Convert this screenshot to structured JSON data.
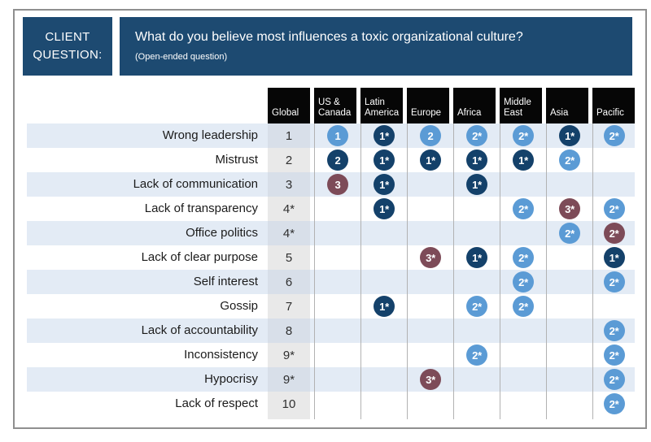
{
  "header": {
    "label_line1": "CLIENT",
    "label_line2": "QUESTION:",
    "question": "What do you believe most influences a toxic organizational culture?",
    "subtext": "(Open-ended question)"
  },
  "colors": {
    "band_navy": "#1d4a71",
    "column_header_black": "#060606",
    "row_stripe_blue": "#e3ebf5",
    "global_column_gray": "#e9e9e9",
    "circle_blue": "#5b9bd5",
    "circle_navy": "#14416a",
    "circle_maroon": "#7d4b58"
  },
  "chart_data": {
    "type": "table",
    "title": "What do you believe most influences a toxic organizational culture?",
    "subtitle": "(Open-ended question)",
    "columns": [
      "Global",
      "US & Canada",
      "Latin America",
      "Europe",
      "Africa",
      "Middle East",
      "Asia",
      "Pacific"
    ],
    "region_columns": [
      "US & Canada",
      "Latin America",
      "Europe",
      "Africa",
      "Middle East",
      "Asia",
      "Pacific"
    ],
    "cell_format": "each region cell = [rank_text, circle_color] or null when empty",
    "rows": [
      {
        "label": "Wrong leadership",
        "global": "1",
        "cells": [
          [
            "1",
            "blue"
          ],
          [
            "1*",
            "navy"
          ],
          [
            "2",
            "blue"
          ],
          [
            "2*",
            "blue"
          ],
          [
            "2*",
            "blue"
          ],
          [
            "1*",
            "navy"
          ],
          [
            "2*",
            "blue"
          ]
        ]
      },
      {
        "label": "Mistrust",
        "global": "2",
        "cells": [
          [
            "2",
            "navy"
          ],
          [
            "1*",
            "navy"
          ],
          [
            "1*",
            "navy"
          ],
          [
            "1*",
            "navy"
          ],
          [
            "1*",
            "navy"
          ],
          [
            "2*",
            "blue"
          ],
          null
        ]
      },
      {
        "label": "Lack of communication",
        "global": "3",
        "cells": [
          [
            "3",
            "maroon"
          ],
          [
            "1*",
            "navy"
          ],
          null,
          [
            "1*",
            "navy"
          ],
          null,
          null,
          null
        ]
      },
      {
        "label": "Lack of transparency",
        "global": "4*",
        "cells": [
          null,
          [
            "1*",
            "navy"
          ],
          null,
          null,
          [
            "2*",
            "blue"
          ],
          [
            "3*",
            "maroon"
          ],
          [
            "2*",
            "blue"
          ]
        ]
      },
      {
        "label": "Office politics",
        "global": "4*",
        "cells": [
          null,
          null,
          null,
          null,
          null,
          [
            "2*",
            "blue"
          ],
          [
            "2*",
            "maroon"
          ]
        ]
      },
      {
        "label": "Lack of clear purpose",
        "global": "5",
        "cells": [
          null,
          null,
          [
            "3*",
            "maroon"
          ],
          [
            "1*",
            "navy"
          ],
          [
            "2*",
            "blue"
          ],
          null,
          [
            "1*",
            "navy"
          ]
        ]
      },
      {
        "label": "Self interest",
        "global": "6",
        "cells": [
          null,
          null,
          null,
          null,
          [
            "2*",
            "blue"
          ],
          null,
          [
            "2*",
            "blue"
          ]
        ]
      },
      {
        "label": "Gossip",
        "global": "7",
        "cells": [
          null,
          [
            "1*",
            "navy"
          ],
          null,
          [
            "2*",
            "blue"
          ],
          [
            "2*",
            "blue"
          ],
          null,
          null
        ]
      },
      {
        "label": "Lack of accountability",
        "global": "8",
        "cells": [
          null,
          null,
          null,
          null,
          null,
          null,
          [
            "2*",
            "blue"
          ]
        ]
      },
      {
        "label": "Inconsistency",
        "global": "9*",
        "cells": [
          null,
          null,
          null,
          [
            "2*",
            "blue"
          ],
          null,
          null,
          [
            "2*",
            "blue"
          ]
        ]
      },
      {
        "label": "Hypocrisy",
        "global": "9*",
        "cells": [
          null,
          null,
          [
            "3*",
            "maroon"
          ],
          null,
          null,
          null,
          [
            "2*",
            "blue"
          ]
        ]
      },
      {
        "label": "Lack of respect",
        "global": "10",
        "cells": [
          null,
          null,
          null,
          null,
          null,
          null,
          [
            "2*",
            "blue"
          ]
        ]
      }
    ]
  }
}
